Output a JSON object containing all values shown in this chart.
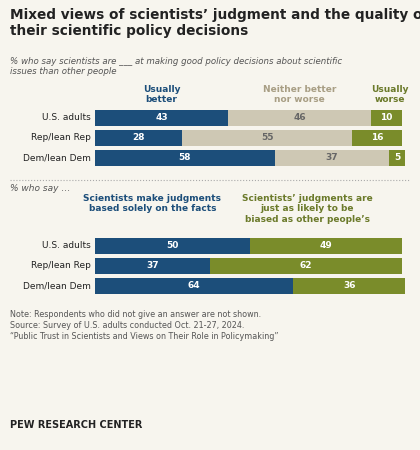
{
  "title": "Mixed views of scientists’ judgment and the quality of\ntheir scientific policy decisions",
  "subtitle1": "% who say scientists are ___ at making good policy decisions about scientific\nissues than other people",
  "subtitle2": "% who say …",
  "section1": {
    "categories": [
      "U.S. adults",
      "Rep/lean Rep",
      "Dem/lean Dem"
    ],
    "col_labels": [
      "Usually\nbetter",
      "Neither better\nnor worse",
      "Usually\nworse"
    ],
    "col_label_colors": [
      "#1c4e7a",
      "#a89e84",
      "#6b7a2a"
    ],
    "values": [
      [
        43,
        46,
        10
      ],
      [
        28,
        55,
        16
      ],
      [
        58,
        37,
        5
      ]
    ],
    "colors": [
      "#1c4e7a",
      "#cec8b4",
      "#7a8c2a"
    ]
  },
  "section2": {
    "categories": [
      "U.S. adults",
      "Rep/lean Rep",
      "Dem/lean Dem"
    ],
    "col_labels": [
      "Scientists make judgments\nbased solely on the facts",
      "Scientists’ judgments are\njust as likely to be\nbiased as other people’s"
    ],
    "col_label_colors": [
      "#1c4e7a",
      "#6b7a2a"
    ],
    "values": [
      [
        50,
        49
      ],
      [
        37,
        62
      ],
      [
        64,
        36
      ]
    ],
    "colors": [
      "#1c4e7a",
      "#7a8c2a"
    ]
  },
  "note_line1": "Note: Respondents who did not give an answer are not shown.",
  "note_line2": "Source: Survey of U.S. adults conducted Oct. 21-27, 2024.",
  "note_line3": "“Public Trust in Scientists and Views on Their Role in Policymaking”",
  "branding": "PEW RESEARCH CENTER",
  "bg_color": "#f7f5ee",
  "text_color_dark": "#222222",
  "text_color_mid": "#555555",
  "bar_label_color_light": "#ffffff",
  "bar_label_color_mid": "#666666"
}
